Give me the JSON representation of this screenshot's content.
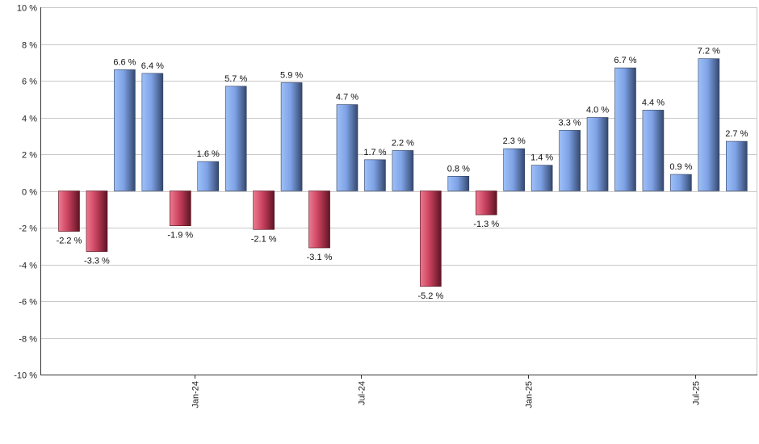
{
  "chart_data": {
    "type": "bar",
    "ylim": [
      -10,
      10
    ],
    "yticks": [
      -10,
      -8,
      -6,
      -4,
      -2,
      0,
      2,
      4,
      6,
      8,
      10
    ],
    "ytick_labels": [
      "-10 %",
      "-8 %",
      "-6 %",
      "-4 %",
      "-2 %",
      "0 %",
      "2 %",
      "4 %",
      "6 %",
      "8 %",
      "10 %"
    ],
    "values": [
      -2.2,
      -3.3,
      6.6,
      6.4,
      -1.9,
      1.6,
      5.7,
      -2.1,
      5.9,
      -3.1,
      4.7,
      1.7,
      2.2,
      -5.2,
      0.8,
      -1.3,
      2.3,
      1.4,
      3.3,
      4.0,
      6.7,
      4.4,
      0.9,
      7.2,
      2.7
    ],
    "value_labels": [
      "-2.2 %",
      "-3.3 %",
      "6.6 %",
      "6.4 %",
      "-1.9 %",
      "1.6 %",
      "5.7 %",
      "-2.1 %",
      "5.9 %",
      "-3.1 %",
      "4.7 %",
      "1.7 %",
      "2.2 %",
      "-5.2 %",
      "0.8 %",
      "-1.3 %",
      "2.3 %",
      "1.4 %",
      "3.3 %",
      "4.0 %",
      "6.7 %",
      "4.4 %",
      "0.9 %",
      "7.2 %",
      "2.7 %"
    ],
    "x_ticks": [
      {
        "label": "Jan-24",
        "index": 4.5
      },
      {
        "label": "Jul-24",
        "index": 10.5
      },
      {
        "label": "Jan-25",
        "index": 16.5
      },
      {
        "label": "Jul-25",
        "index": 22.5
      }
    ],
    "grid": true,
    "colors": {
      "positive": "#6f93d8",
      "negative": "#b8344f"
    }
  }
}
